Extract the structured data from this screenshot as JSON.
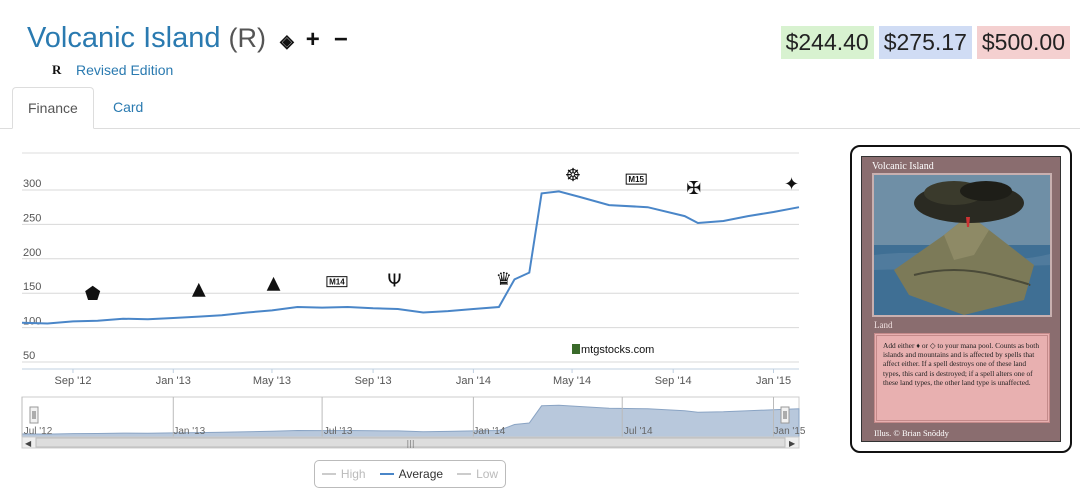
{
  "header": {
    "card_name": "Volcanic Island",
    "rarity": "(R)",
    "icons": [
      {
        "name": "hide-icon",
        "glyph": "◈"
      },
      {
        "name": "plus-icon",
        "glyph": "+"
      },
      {
        "name": "minus-icon",
        "glyph": "−"
      }
    ],
    "set_symbol": "R",
    "edition": "Revised Edition"
  },
  "prices": {
    "low": "$244.40",
    "average": "$275.17",
    "high": "$500.00",
    "colors": {
      "low": "#d8f2d0",
      "average": "#d0dcf4",
      "high": "#f4d0d0"
    }
  },
  "tabs": [
    {
      "label": "Finance",
      "active": true
    },
    {
      "label": "Card",
      "active": false
    }
  ],
  "chart_data": {
    "type": "line",
    "yticks": [
      50,
      100,
      150,
      200,
      250,
      300
    ],
    "ylim": [
      50,
      300
    ],
    "xticks": [
      "Sep '12",
      "Jan '13",
      "May '13",
      "Sep '13",
      "Jan '14",
      "May '14",
      "Sep '14",
      "Jan '15"
    ],
    "navigator_ticks": [
      "Jul '12",
      "Jan '13",
      "Jul '13",
      "Jan '14",
      "Jul '14",
      "Jan '15"
    ],
    "watermark": "mtgstocks.com",
    "accent": "#4a86c8",
    "series": [
      {
        "name": "Average",
        "points": [
          [
            "2012-07-01",
            107
          ],
          [
            "2012-08-01",
            106
          ],
          [
            "2012-09-01",
            109
          ],
          [
            "2012-10-01",
            110
          ],
          [
            "2012-11-01",
            113
          ],
          [
            "2012-12-01",
            112
          ],
          [
            "2013-01-01",
            114
          ],
          [
            "2013-02-01",
            116
          ],
          [
            "2013-03-01",
            118
          ],
          [
            "2013-04-01",
            122
          ],
          [
            "2013-05-01",
            125
          ],
          [
            "2013-06-01",
            130
          ],
          [
            "2013-07-01",
            129
          ],
          [
            "2013-08-01",
            130
          ],
          [
            "2013-09-01",
            128
          ],
          [
            "2013-10-01",
            127
          ],
          [
            "2013-11-01",
            122
          ],
          [
            "2013-12-01",
            124
          ],
          [
            "2014-01-01",
            127
          ],
          [
            "2014-02-01",
            130
          ],
          [
            "2014-02-20",
            170
          ],
          [
            "2014-03-10",
            180
          ],
          [
            "2014-03-25",
            295
          ],
          [
            "2014-04-15",
            298
          ],
          [
            "2014-05-10",
            290
          ],
          [
            "2014-06-15",
            278
          ],
          [
            "2014-08-01",
            275
          ],
          [
            "2014-09-15",
            262
          ],
          [
            "2014-10-01",
            252
          ],
          [
            "2014-11-01",
            255
          ],
          [
            "2014-12-01",
            262
          ],
          [
            "2015-01-01",
            268
          ],
          [
            "2015-02-01",
            275
          ]
        ]
      }
    ],
    "set_markers": [
      {
        "date": "2012-09-25",
        "icon": "return-to-ravnica-icon"
      },
      {
        "date": "2013-02-01",
        "icon": "gatecrash-icon"
      },
      {
        "date": "2013-05-03",
        "icon": "dragons-maze-icon"
      },
      {
        "date": "2013-07-19",
        "icon": "m14-icon",
        "label": "M14"
      },
      {
        "date": "2013-09-27",
        "icon": "theros-icon"
      },
      {
        "date": "2014-02-07",
        "icon": "born-of-the-gods-icon"
      },
      {
        "date": "2014-05-02",
        "icon": "journey-into-nyx-icon"
      },
      {
        "date": "2014-07-18",
        "icon": "m15-icon",
        "label": "M15"
      },
      {
        "date": "2014-09-26",
        "icon": "khans-of-tarkir-icon"
      },
      {
        "date": "2015-01-23",
        "icon": "fate-reforged-icon"
      }
    ]
  },
  "legend": {
    "items": [
      {
        "label": "High",
        "active": false
      },
      {
        "label": "Average",
        "active": true
      },
      {
        "label": "Low",
        "active": false
      }
    ]
  },
  "card_image": {
    "title": "Volcanic Island",
    "type": "Land",
    "rules_text": "Add either ♦ or ◇ to your mana pool. Counts as both islands and mountains and is affected by spells that affect either. If a spell destroys one of these land types, this card is destroyed; if a spell alters one of these land types, the other land type is unaffected.",
    "illustrator": "Illus. © Brian Snõddy"
  }
}
